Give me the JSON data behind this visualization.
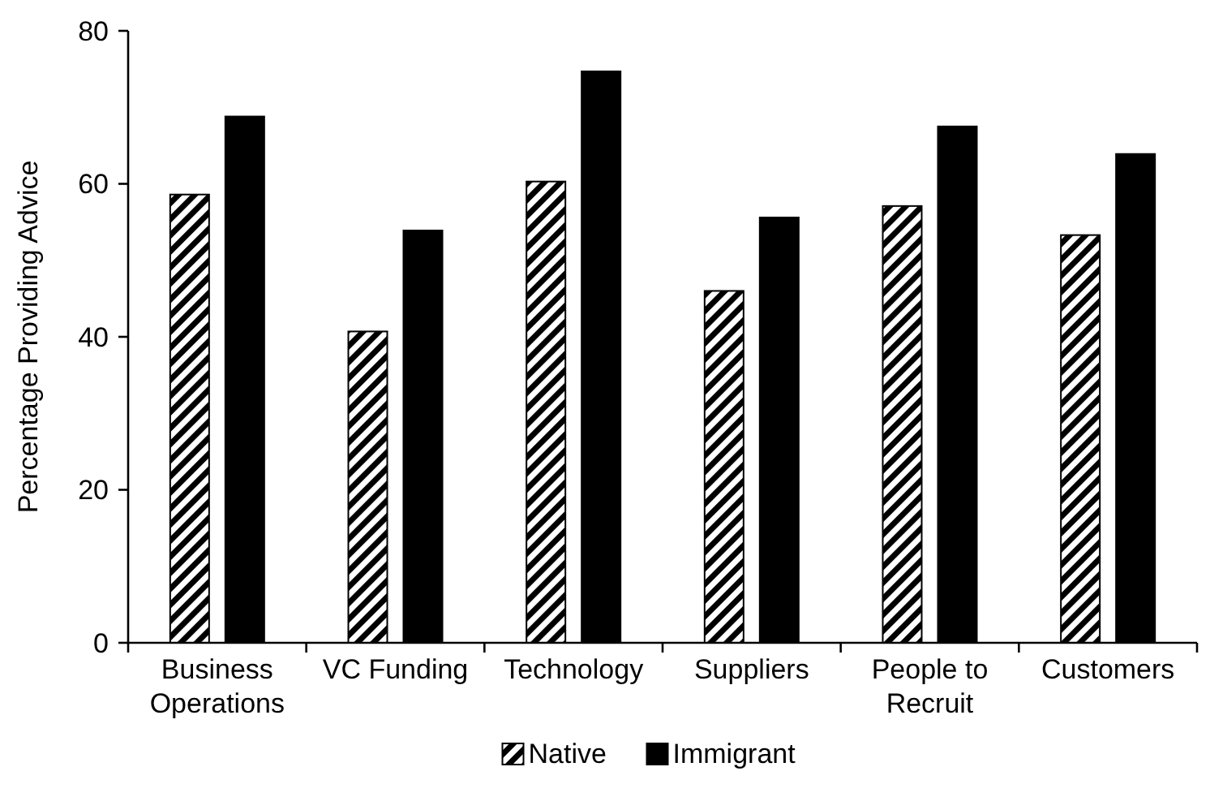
{
  "chart_data": {
    "type": "bar",
    "ylabel": "Percentage Providing Advice",
    "categories": [
      "Business Operations",
      "VC Funding",
      "Technology",
      "Suppliers",
      "People to Recruit",
      "Customers"
    ],
    "series": [
      {
        "name": "Native",
        "color": "#000000",
        "values": [
          58.6,
          40.7,
          60.3,
          46.0,
          57.1,
          53.3
        ]
      },
      {
        "name": "Immigrant",
        "color": "#000000",
        "values": [
          68.8,
          53.9,
          74.7,
          55.6,
          67.5,
          63.9
        ]
      }
    ],
    "ylim": [
      0,
      80
    ],
    "yticks": [
      0,
      20,
      40,
      60,
      80
    ],
    "grid": false,
    "legend": "bottom"
  }
}
